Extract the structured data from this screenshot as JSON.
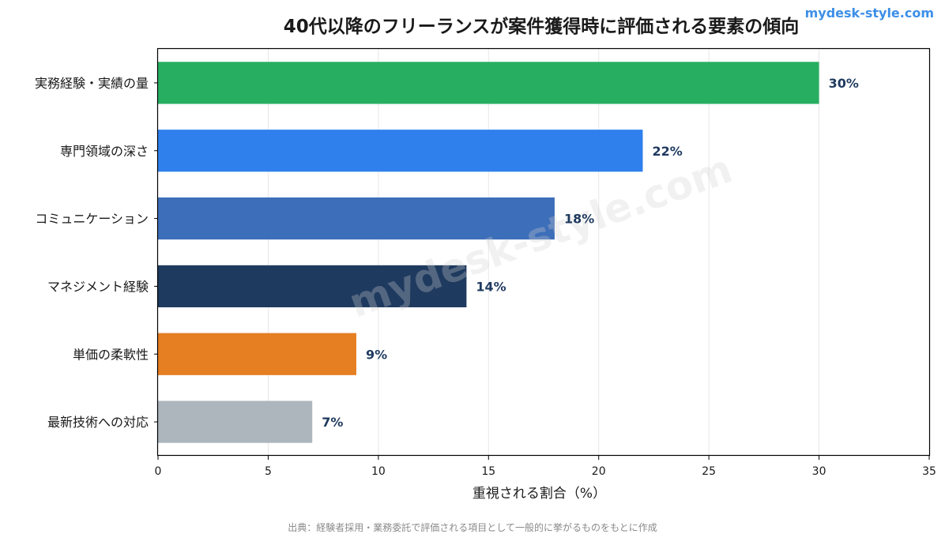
{
  "brand_label": "mydesk-style.com",
  "watermark": "mydesk-style.com",
  "source_note": "出典：経験者採用・業務委託で評価される項目として一般的に挙がるものをもとに作成",
  "chart_data": {
    "type": "bar",
    "orientation": "horizontal",
    "title": "40代以降のフリーランスが案件獲得時に評価される要素の傾向",
    "xlabel": "重視される割合（%）",
    "ylabel": "",
    "xlim": [
      0,
      35
    ],
    "xticks": [
      0,
      5,
      10,
      15,
      20,
      25,
      30,
      35
    ],
    "grid": "vertical",
    "categories": [
      "実務経験・実績の量",
      "専門領域の深さ",
      "コミュニケーション",
      "マネジメント経験",
      "単価の柔軟性",
      "最新技術への対応"
    ],
    "values": [
      30,
      22,
      18,
      14,
      9,
      7
    ],
    "data_labels": [
      "30%",
      "22%",
      "18%",
      "14%",
      "9%",
      "7%"
    ],
    "colors": [
      "#27ae60",
      "#2f80ed",
      "#3d6eb9",
      "#1f3a5f",
      "#e67e22",
      "#adb5bd"
    ],
    "label_color": "#1f3a5f"
  }
}
